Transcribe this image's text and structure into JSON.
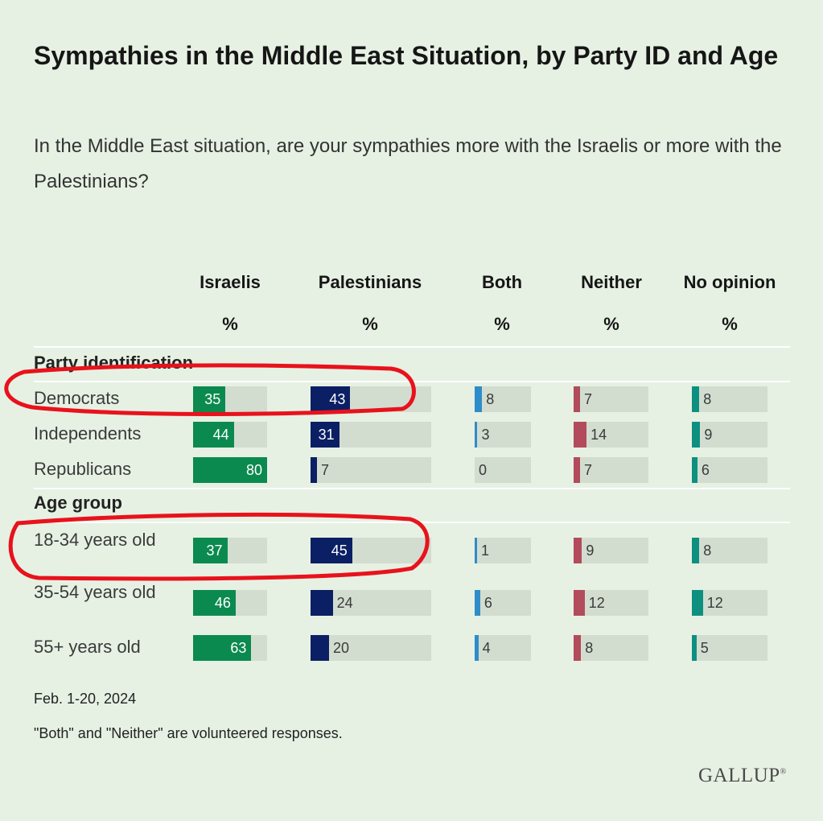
{
  "chart_data": {
    "type": "table",
    "title": "Sympathies in the Middle East Situation, by Party ID and Age",
    "subtitle": "In the Middle East situation, are your sympathies more with the Israelis or more with the Palestinians?",
    "columns": [
      {
        "name": "Israelis",
        "unit": "%",
        "color": "#0b8a4f"
      },
      {
        "name": "Palestinians",
        "unit": "%",
        "color": "#0b1f64"
      },
      {
        "name": "Both",
        "unit": "%",
        "color": "#2e8cc8"
      },
      {
        "name": "Neither",
        "unit": "%",
        "color": "#b24b5b"
      },
      {
        "name": "No opinion",
        "unit": "%",
        "color": "#0e9080"
      }
    ],
    "groups": [
      {
        "label": "Party identification",
        "rows": [
          {
            "label": "Democrats",
            "values": [
              35,
              43,
              8,
              7,
              8
            ]
          },
          {
            "label": "Independents",
            "values": [
              44,
              31,
              3,
              14,
              9
            ]
          },
          {
            "label": "Republicans",
            "values": [
              80,
              7,
              0,
              7,
              6
            ]
          }
        ]
      },
      {
        "label": "Age group",
        "rows": [
          {
            "label": "18-34 years old",
            "values": [
              37,
              45,
              1,
              9,
              8
            ]
          },
          {
            "label": "35-54 years old",
            "values": [
              46,
              24,
              6,
              12,
              12
            ]
          },
          {
            "label": "55+ years old",
            "values": [
              63,
              20,
              4,
              8,
              5
            ]
          }
        ]
      }
    ],
    "bar_scale_max": 80
  },
  "footnotes": {
    "date": "Feb. 1-20, 2024",
    "note": "\"Both\" and \"Neither\" are volunteered responses."
  },
  "branding": {
    "logo_text": "GALLUP",
    "logo_mark": "®"
  },
  "annotations": [
    {
      "type": "hand-drawn-circle",
      "color": "#e8121c",
      "target": "Democrats"
    },
    {
      "type": "hand-drawn-circle",
      "color": "#e8121c",
      "target": "18-34 years old"
    }
  ]
}
